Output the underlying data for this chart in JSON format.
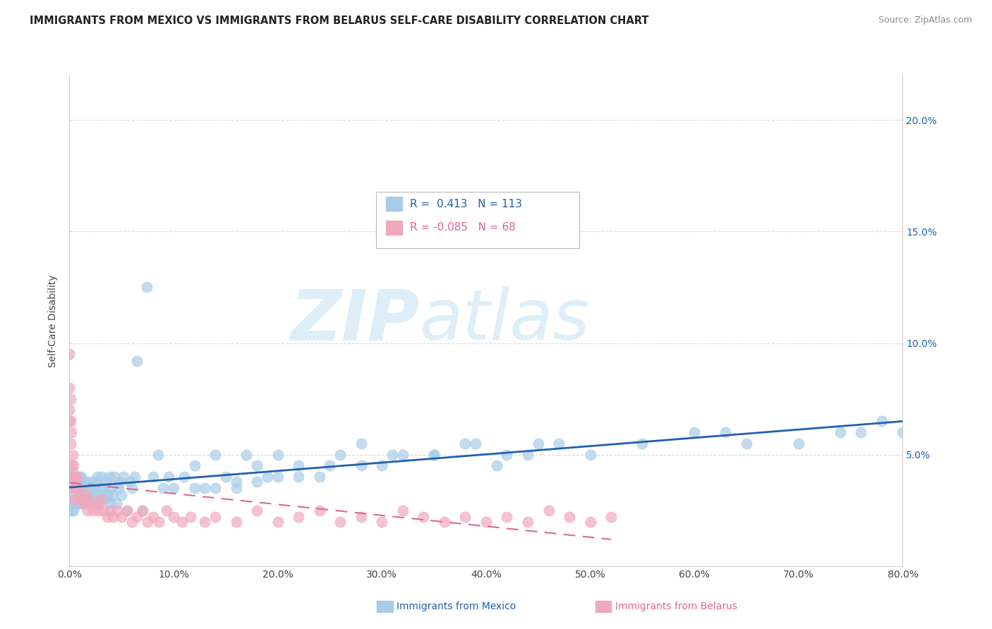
{
  "title": "IMMIGRANTS FROM MEXICO VS IMMIGRANTS FROM BELARUS SELF-CARE DISABILITY CORRELATION CHART",
  "source": "Source: ZipAtlas.com",
  "ylabel": "Self-Care Disability",
  "r_mexico": 0.413,
  "n_mexico": 113,
  "r_belarus": -0.085,
  "n_belarus": 68,
  "legend_mexico": "Immigrants from Mexico",
  "legend_belarus": "Immigrants from Belarus",
  "color_mexico": "#a8cce8",
  "color_belarus": "#f0a8bc",
  "line_color_mexico": "#2060b0",
  "line_color_belarus": "#e06888",
  "watermark_zip": "ZIP",
  "watermark_atlas": "atlas",
  "watermark_color": "#ddeef8",
  "background_color": "#ffffff",
  "grid_color": "#d8d8d8",
  "xlim": [
    0.0,
    0.8
  ],
  "ylim": [
    0.0,
    0.22
  ],
  "yticks": [
    0.0,
    0.05,
    0.1,
    0.15,
    0.2
  ],
  "right_ytick_labels": [
    "",
    "5.0%",
    "10.0%",
    "15.0%",
    "20.0%"
  ],
  "xtick_vals": [
    0.0,
    0.1,
    0.2,
    0.3,
    0.4,
    0.5,
    0.6,
    0.7,
    0.8
  ],
  "xtick_labels": [
    "0.0%",
    "10.0%",
    "20.0%",
    "30.0%",
    "40.0%",
    "50.0%",
    "60.0%",
    "70.0%",
    "80.0%"
  ],
  "mexico_x": [
    0.001,
    0.001,
    0.002,
    0.002,
    0.003,
    0.003,
    0.003,
    0.004,
    0.004,
    0.005,
    0.005,
    0.006,
    0.006,
    0.007,
    0.007,
    0.008,
    0.008,
    0.009,
    0.009,
    0.01,
    0.01,
    0.011,
    0.011,
    0.012,
    0.013,
    0.014,
    0.015,
    0.016,
    0.016,
    0.017,
    0.018,
    0.019,
    0.02,
    0.021,
    0.022,
    0.023,
    0.025,
    0.026,
    0.027,
    0.028,
    0.029,
    0.03,
    0.031,
    0.032,
    0.034,
    0.035,
    0.037,
    0.038,
    0.039,
    0.04,
    0.041,
    0.043,
    0.045,
    0.047,
    0.048,
    0.05,
    0.052,
    0.055,
    0.058,
    0.06,
    0.063,
    0.065,
    0.07,
    0.074,
    0.08,
    0.085,
    0.09,
    0.095,
    0.1,
    0.11,
    0.12,
    0.13,
    0.14,
    0.15,
    0.16,
    0.17,
    0.18,
    0.19,
    0.2,
    0.22,
    0.24,
    0.26,
    0.28,
    0.3,
    0.32,
    0.35,
    0.38,
    0.41,
    0.44,
    0.47,
    0.5,
    0.55,
    0.6,
    0.63,
    0.65,
    0.7,
    0.74,
    0.76,
    0.78,
    0.8,
    0.45,
    0.42,
    0.39,
    0.35,
    0.31,
    0.28,
    0.25,
    0.22,
    0.2,
    0.18,
    0.16,
    0.14,
    0.12
  ],
  "mexico_y": [
    0.03,
    0.038,
    0.025,
    0.04,
    0.028,
    0.035,
    0.042,
    0.025,
    0.033,
    0.028,
    0.038,
    0.03,
    0.038,
    0.028,
    0.035,
    0.03,
    0.038,
    0.032,
    0.04,
    0.028,
    0.038,
    0.03,
    0.04,
    0.035,
    0.032,
    0.03,
    0.035,
    0.028,
    0.038,
    0.032,
    0.03,
    0.035,
    0.032,
    0.038,
    0.035,
    0.03,
    0.038,
    0.032,
    0.04,
    0.028,
    0.035,
    0.032,
    0.04,
    0.035,
    0.03,
    0.038,
    0.032,
    0.04,
    0.028,
    0.035,
    0.032,
    0.04,
    0.028,
    0.035,
    0.038,
    0.032,
    0.04,
    0.025,
    0.038,
    0.035,
    0.04,
    0.092,
    0.025,
    0.125,
    0.04,
    0.05,
    0.035,
    0.04,
    0.035,
    0.04,
    0.045,
    0.035,
    0.05,
    0.04,
    0.035,
    0.05,
    0.045,
    0.04,
    0.05,
    0.045,
    0.04,
    0.05,
    0.055,
    0.045,
    0.05,
    0.05,
    0.055,
    0.045,
    0.05,
    0.055,
    0.05,
    0.055,
    0.06,
    0.06,
    0.055,
    0.055,
    0.06,
    0.06,
    0.065,
    0.06,
    0.055,
    0.05,
    0.055,
    0.05,
    0.05,
    0.045,
    0.045,
    0.04,
    0.04,
    0.038,
    0.038,
    0.035,
    0.035
  ],
  "belarus_x": [
    0.0,
    0.0,
    0.0,
    0.0,
    0.001,
    0.001,
    0.001,
    0.002,
    0.002,
    0.003,
    0.003,
    0.004,
    0.004,
    0.005,
    0.005,
    0.006,
    0.007,
    0.008,
    0.009,
    0.01,
    0.011,
    0.013,
    0.015,
    0.017,
    0.019,
    0.021,
    0.023,
    0.026,
    0.028,
    0.03,
    0.033,
    0.036,
    0.039,
    0.042,
    0.046,
    0.05,
    0.055,
    0.06,
    0.065,
    0.07,
    0.075,
    0.08,
    0.086,
    0.093,
    0.1,
    0.108,
    0.116,
    0.13,
    0.14,
    0.16,
    0.18,
    0.2,
    0.22,
    0.24,
    0.26,
    0.28,
    0.3,
    0.32,
    0.34,
    0.36,
    0.38,
    0.4,
    0.42,
    0.44,
    0.46,
    0.48,
    0.5,
    0.52
  ],
  "belarus_y": [
    0.095,
    0.08,
    0.07,
    0.065,
    0.075,
    0.065,
    0.055,
    0.06,
    0.045,
    0.05,
    0.04,
    0.045,
    0.035,
    0.04,
    0.03,
    0.035,
    0.04,
    0.035,
    0.03,
    0.035,
    0.03,
    0.028,
    0.032,
    0.025,
    0.03,
    0.028,
    0.025,
    0.028,
    0.025,
    0.03,
    0.025,
    0.022,
    0.025,
    0.022,
    0.025,
    0.022,
    0.025,
    0.02,
    0.022,
    0.025,
    0.02,
    0.022,
    0.02,
    0.025,
    0.022,
    0.02,
    0.022,
    0.02,
    0.022,
    0.02,
    0.025,
    0.02,
    0.022,
    0.025,
    0.02,
    0.022,
    0.02,
    0.025,
    0.022,
    0.02,
    0.022,
    0.02,
    0.022,
    0.02,
    0.025,
    0.022,
    0.02,
    0.022
  ]
}
